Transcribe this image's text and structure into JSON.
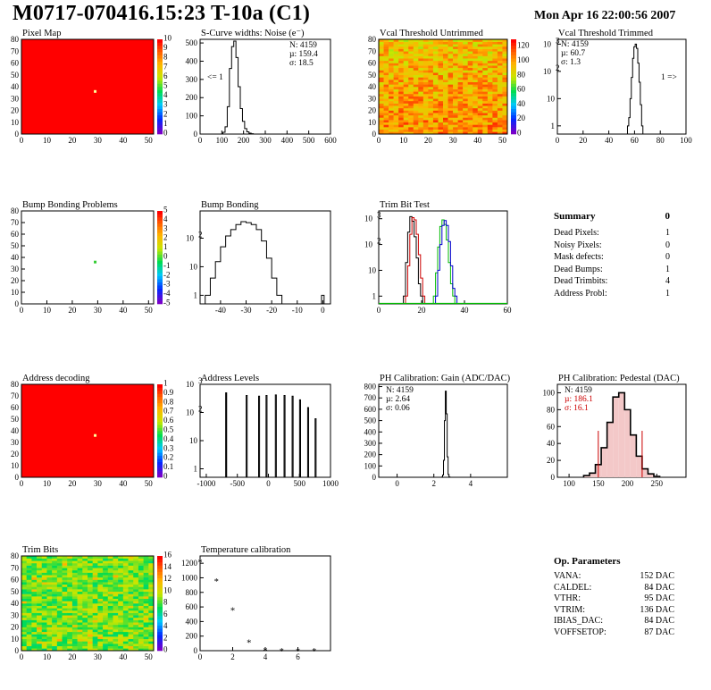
{
  "header": {
    "title": "M0717-070416.15:23 T-10a (C1)",
    "date": "Mon Apr 16 22:00:56 2007"
  },
  "panels": {
    "pixel_map": {
      "title": "Pixel Map"
    },
    "scurve": {
      "title": "S-Curve widths: Noise (e⁻)",
      "stats": [
        "N: 4159",
        "µ: 159.4",
        "σ: 18.5"
      ],
      "overflow_left": "<= 1"
    },
    "vcal_untrimmed": {
      "title": "Vcal Threshold Untrimmed"
    },
    "vcal_trimmed": {
      "title": "Vcal Threshold Trimmed",
      "stats": [
        "N: 4159",
        "µ: 60.7",
        "σ: 1.3"
      ],
      "overflow_right": "1 =>"
    },
    "bump_problems": {
      "title": "Bump Bonding Problems"
    },
    "bump_bonding": {
      "title": "Bump Bonding"
    },
    "trim_bit_test": {
      "title": "Trim Bit Test"
    },
    "address_decoding": {
      "title": "Address decoding"
    },
    "address_levels": {
      "title": "Address Levels"
    },
    "ph_gain": {
      "title": "PH Calibration: Gain (ADC/DAC)",
      "stats": [
        "N: 4159",
        "µ: 2.64",
        "σ: 0.06"
      ]
    },
    "ph_pedestal": {
      "title": "PH Calibration: Pedestal (DAC)",
      "stats": [
        "N: 4159",
        "µ: 186.1",
        "σ: 16.1"
      ]
    },
    "trim_bits": {
      "title": "Trim Bits"
    },
    "temperature": {
      "title": "Temperature calibration"
    }
  },
  "summary": {
    "title": "Summary",
    "total": "0",
    "rows": [
      {
        "label": "Dead Pixels:",
        "value": "1"
      },
      {
        "label": "Noisy Pixels:",
        "value": "0"
      },
      {
        "label": "Mask defects:",
        "value": "0"
      },
      {
        "label": "Dead Bumps:",
        "value": "1"
      },
      {
        "label": "Dead Trimbits:",
        "value": "4"
      },
      {
        "label": "Address Probl:",
        "value": "1"
      }
    ]
  },
  "op_params": {
    "title": "Op. Parameters",
    "rows": [
      {
        "label": "VANA:",
        "value": "152 DAC"
      },
      {
        "label": "CALDEL:",
        "value": "84 DAC"
      },
      {
        "label": "VTHR:",
        "value": "95 DAC"
      },
      {
        "label": "VTRIM:",
        "value": "136 DAC"
      },
      {
        "label": "IBIAS_DAC:",
        "value": "84 DAC"
      },
      {
        "label": "VOFFSETOP:",
        "value": "87 DAC"
      }
    ]
  },
  "colors": {
    "red_map": "#ff0000",
    "frame": "#000000",
    "trim_red": "#cc0000",
    "trim_green": "#00bb00",
    "trim_blue": "#0000cc",
    "pedestal_fill": "#cc0000"
  },
  "chart_data": [
    {
      "id": "pixel_map",
      "type": "heatmap",
      "xlim": [
        0,
        52
      ],
      "ylim": [
        0,
        80
      ],
      "xticks": [
        0,
        10,
        20,
        30,
        40,
        50
      ],
      "yticks": [
        0,
        10,
        20,
        30,
        40,
        50,
        60,
        70,
        80
      ],
      "zlim": [
        0,
        10
      ],
      "zticks": [
        0,
        1,
        2,
        3,
        4,
        5,
        6,
        7,
        8,
        9,
        10
      ],
      "fill_value": 10,
      "special_cells": [
        {
          "x": 29,
          "y": 36,
          "value": "dead"
        }
      ]
    },
    {
      "id": "scurve",
      "type": "histogram",
      "xlim": [
        0,
        600
      ],
      "xticks": [
        0,
        100,
        200,
        300,
        400,
        500,
        600
      ],
      "ylim": [
        0,
        520
      ],
      "yticks": [
        0,
        100,
        200,
        300,
        400,
        500
      ],
      "x": [
        100,
        110,
        120,
        130,
        140,
        150,
        160,
        170,
        180,
        190,
        200,
        210,
        220,
        230,
        240,
        250
      ],
      "y": [
        0,
        10,
        40,
        150,
        360,
        480,
        510,
        420,
        260,
        140,
        70,
        30,
        12,
        5,
        2,
        0
      ]
    },
    {
      "id": "vcal_untrimmed",
      "type": "heatmap",
      "xlim": [
        0,
        52
      ],
      "ylim": [
        0,
        80
      ],
      "xticks": [
        0,
        10,
        20,
        30,
        40,
        50
      ],
      "yticks": [
        0,
        10,
        20,
        30,
        40,
        50,
        60,
        70,
        80
      ],
      "zlim": [
        0,
        130
      ],
      "zticks": [
        0,
        20,
        40,
        60,
        80,
        100,
        120
      ]
    },
    {
      "id": "vcal_trimmed",
      "type": "histogram",
      "log_y": true,
      "xlim": [
        0,
        100
      ],
      "xticks": [
        0,
        20,
        40,
        60,
        80,
        100
      ],
      "ylim": [
        0.5,
        1500
      ],
      "yticks": [
        1,
        10,
        100,
        1000
      ],
      "x": [
        55,
        56,
        57,
        58,
        59,
        60,
        61,
        62,
        63,
        64,
        65,
        66,
        67
      ],
      "y": [
        1,
        2,
        10,
        60,
        300,
        800,
        1000,
        700,
        200,
        40,
        6,
        1,
        0
      ]
    },
    {
      "id": "bump_problems",
      "type": "heatmap",
      "xlim": [
        0,
        52
      ],
      "ylim": [
        0,
        80
      ],
      "xticks": [
        0,
        10,
        20,
        30,
        40,
        50
      ],
      "yticks": [
        0,
        10,
        20,
        30,
        40,
        50,
        60,
        70,
        80
      ],
      "zlim": [
        -5,
        5
      ],
      "zticks": [
        -5,
        -4,
        -3,
        -2,
        -1,
        0,
        1,
        2,
        3,
        4,
        5
      ],
      "special_cells": [
        {
          "x": 29,
          "y": 36,
          "value": 1
        }
      ]
    },
    {
      "id": "bump_bonding",
      "type": "histogram",
      "log_y": true,
      "xlim": [
        -48,
        3
      ],
      "xticks": [
        -40,
        -30,
        -20,
        -10,
        0
      ],
      "ylim": [
        0.5,
        900
      ],
      "yticks": [
        1,
        10,
        100
      ],
      "x": [
        -45,
        -43,
        -41,
        -39,
        -37,
        -35,
        -33,
        -31,
        -29,
        -27,
        -25,
        -23,
        -21,
        -19,
        -17,
        0
      ],
      "y": [
        1,
        4,
        15,
        50,
        120,
        200,
        300,
        380,
        350,
        300,
        200,
        80,
        20,
        4,
        1,
        1
      ]
    },
    {
      "id": "trim_bit_test",
      "type": "histogram",
      "log_y": true,
      "xlim": [
        0,
        60
      ],
      "xticks": [
        0,
        20,
        40,
        60
      ],
      "ylim": [
        0.5,
        2000
      ],
      "yticks": [
        1,
        10,
        100,
        1000
      ],
      "series": [
        {
          "name": "",
          "color": "#000000",
          "x": [
            12,
            13,
            14,
            15,
            16,
            17,
            18,
            19,
            20
          ],
          "y": [
            1,
            20,
            300,
            1200,
            800,
            200,
            30,
            3,
            1
          ]
        },
        {
          "name": "",
          "color": "#cc0000",
          "x": [
            13,
            14,
            15,
            16,
            17,
            18,
            19,
            20,
            21
          ],
          "y": [
            1,
            15,
            250,
            1100,
            900,
            250,
            40,
            5,
            1
          ]
        },
        {
          "name": "",
          "color": "#00bb00",
          "x": [
            26,
            27,
            28,
            29,
            30,
            31,
            32,
            33,
            34,
            35
          ],
          "y": [
            1,
            8,
            80,
            500,
            900,
            600,
            150,
            20,
            3,
            1
          ]
        },
        {
          "name": "",
          "color": "#0000cc",
          "x": [
            27,
            28,
            29,
            30,
            31,
            32,
            33,
            34,
            35,
            36
          ],
          "y": [
            1,
            10,
            100,
            550,
            850,
            550,
            130,
            15,
            2,
            1
          ]
        }
      ]
    },
    {
      "id": "address_decoding",
      "type": "heatmap",
      "xlim": [
        0,
        52
      ],
      "ylim": [
        0,
        80
      ],
      "xticks": [
        0,
        10,
        20,
        30,
        40,
        50
      ],
      "yticks": [
        0,
        10,
        20,
        30,
        40,
        50,
        60,
        70,
        80
      ],
      "zlim": [
        0,
        1
      ],
      "zticks": [
        0,
        0.1,
        0.2,
        0.3,
        0.4,
        0.5,
        0.6,
        0.7,
        0.8,
        0.9,
        1
      ],
      "fill_value": 1,
      "special_cells": [
        {
          "x": 29,
          "y": 36,
          "value": "fail"
        }
      ]
    },
    {
      "id": "address_levels",
      "type": "histogram",
      "log_y": true,
      "xlim": [
        -1100,
        1000
      ],
      "xticks": [
        -1000,
        -500,
        0,
        500,
        1000
      ],
      "ylim": [
        0.5,
        1000
      ],
      "yticks": [
        1,
        10,
        100,
        1000
      ],
      "peaks": [
        -680,
        -350,
        -150,
        -30,
        120,
        260,
        390,
        510,
        640,
        760
      ],
      "peak_heights": [
        500,
        400,
        380,
        400,
        420,
        400,
        380,
        280,
        150,
        60
      ]
    },
    {
      "id": "ph_gain",
      "type": "histogram",
      "xlim": [
        -1,
        6
      ],
      "xticks": [
        0,
        2,
        4
      ],
      "ylim": [
        0,
        820
      ],
      "yticks": [
        0,
        100,
        200,
        300,
        400,
        500,
        600,
        700,
        800
      ],
      "x": [
        2.45,
        2.5,
        2.55,
        2.6,
        2.65,
        2.7,
        2.75,
        2.8,
        2.85
      ],
      "y": [
        2,
        20,
        150,
        500,
        760,
        560,
        180,
        25,
        3
      ]
    },
    {
      "id": "ph_pedestal",
      "type": "histogram",
      "xlim": [
        80,
        300
      ],
      "xticks": [
        100,
        150,
        200,
        250
      ],
      "ylim": [
        0,
        110
      ],
      "yticks": [
        0,
        20,
        40,
        60,
        80,
        100
      ],
      "x": [
        130,
        140,
        150,
        160,
        170,
        180,
        190,
        200,
        210,
        220,
        230,
        240,
        250
      ],
      "y": [
        2,
        5,
        15,
        35,
        65,
        95,
        100,
        80,
        50,
        25,
        10,
        4,
        1
      ],
      "markers": [
        150,
        225
      ]
    },
    {
      "id": "trim_bits",
      "type": "heatmap",
      "xlim": [
        0,
        52
      ],
      "ylim": [
        0,
        80
      ],
      "xticks": [
        0,
        10,
        20,
        30,
        40,
        50
      ],
      "yticks": [
        0,
        10,
        20,
        30,
        40,
        50,
        60,
        70,
        80
      ],
      "zlim": [
        0,
        16
      ],
      "zticks": [
        0,
        2,
        4,
        6,
        8,
        10,
        12,
        14,
        16
      ]
    },
    {
      "id": "temperature",
      "type": "scatter",
      "xlim": [
        0,
        8
      ],
      "xticks": [
        0,
        2,
        4,
        6
      ],
      "ylim": [
        0,
        1300
      ],
      "yticks": [
        0,
        200,
        400,
        600,
        800,
        1000,
        1200
      ],
      "x": [
        0,
        1,
        2,
        3,
        4,
        5,
        6,
        7
      ],
      "y": [
        1230,
        970,
        570,
        130,
        20,
        15,
        10,
        10
      ]
    }
  ]
}
